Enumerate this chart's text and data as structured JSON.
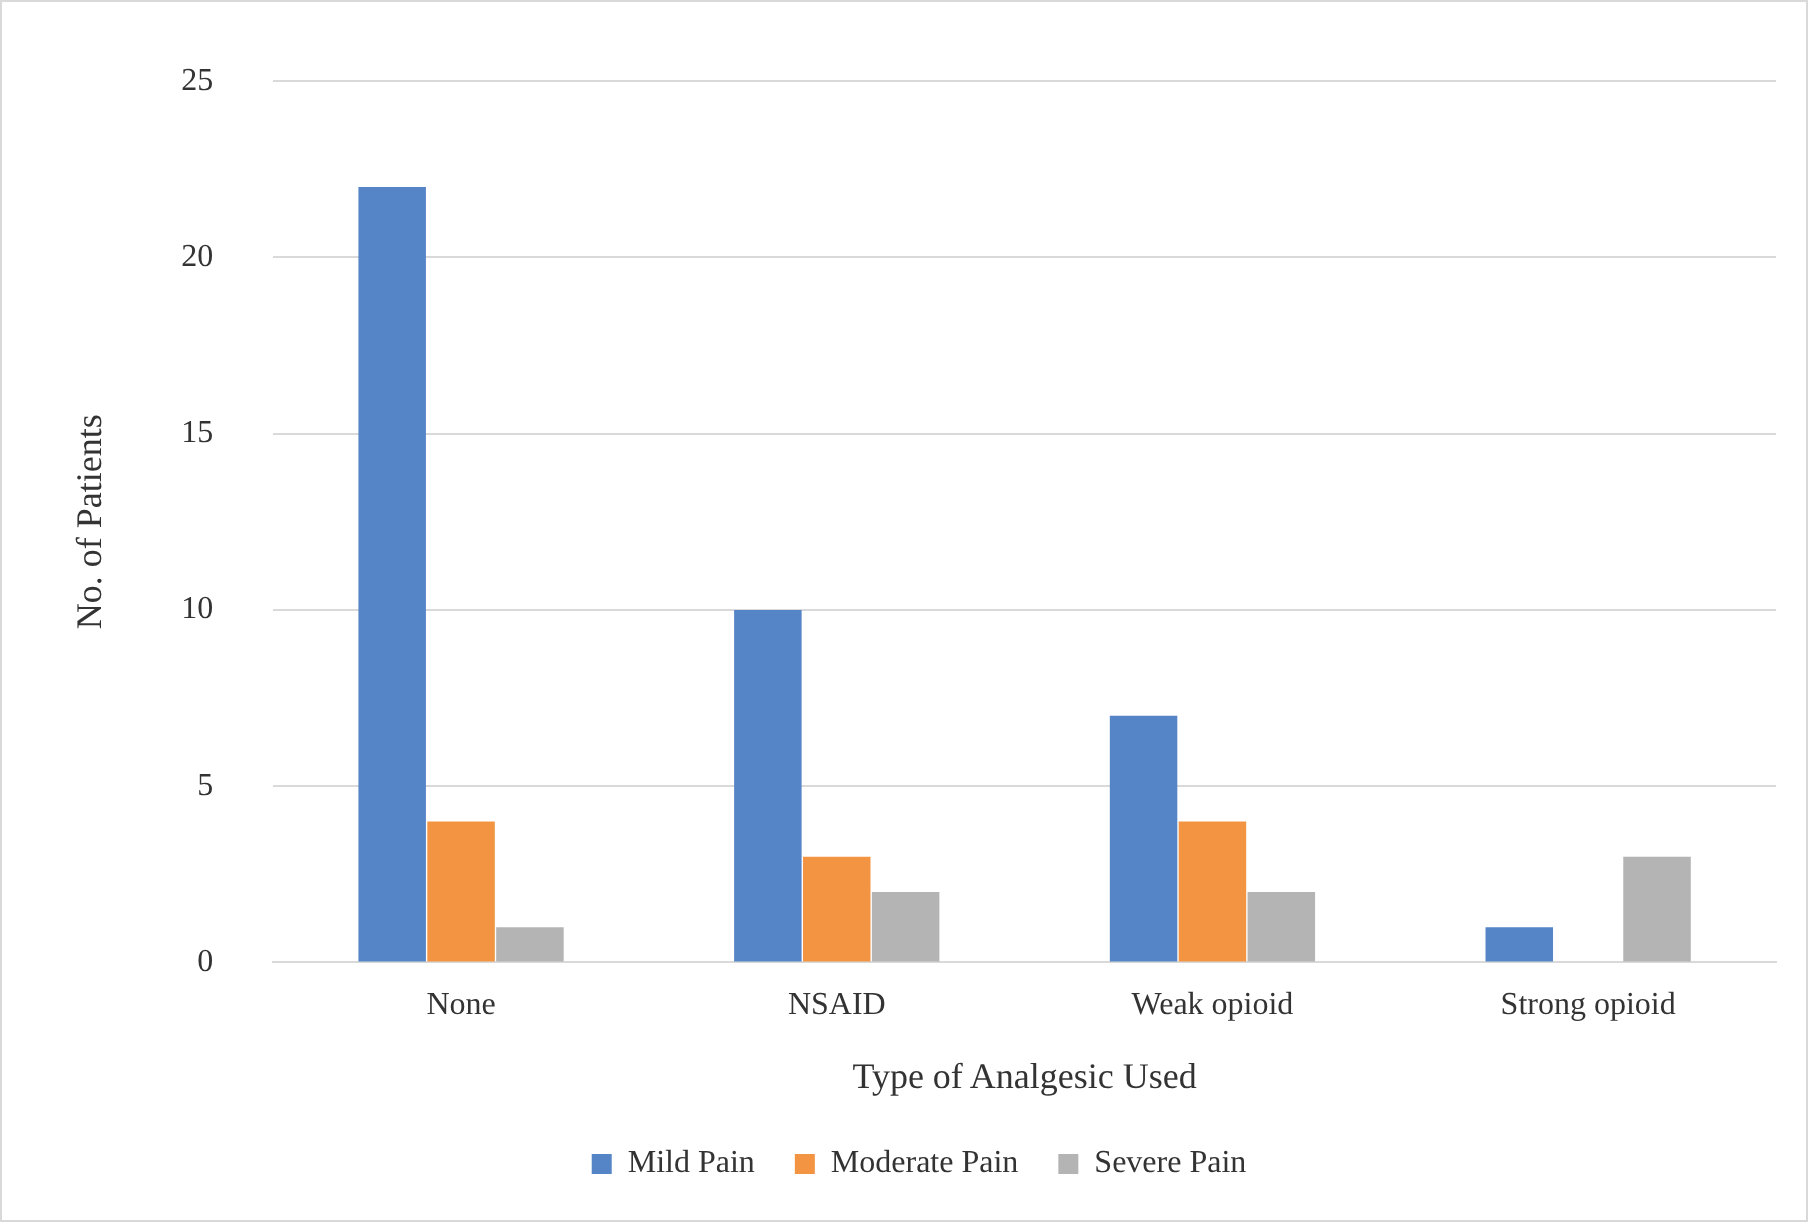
{
  "chart_data": {
    "type": "bar",
    "xlabel": "Type of Analgesic Used",
    "ylabel": "No. of Patients",
    "categories": [
      "None",
      "NSAID",
      "Weak opioid",
      "Strong opioid"
    ],
    "series": [
      {
        "name": "Mild Pain",
        "color": "#5585c7",
        "values": [
          22,
          10,
          7,
          1
        ]
      },
      {
        "name": "Moderate Pain",
        "color": "#f39442",
        "values": [
          4,
          3,
          4,
          0
        ]
      },
      {
        "name": "Severe Pain",
        "color": "#b4b4b4",
        "values": [
          1,
          2,
          2,
          3
        ]
      }
    ],
    "ylim": [
      0,
      25
    ],
    "yticks": [
      0,
      5,
      10,
      15,
      20,
      25
    ],
    "grid": "y",
    "legend": "bottom"
  }
}
